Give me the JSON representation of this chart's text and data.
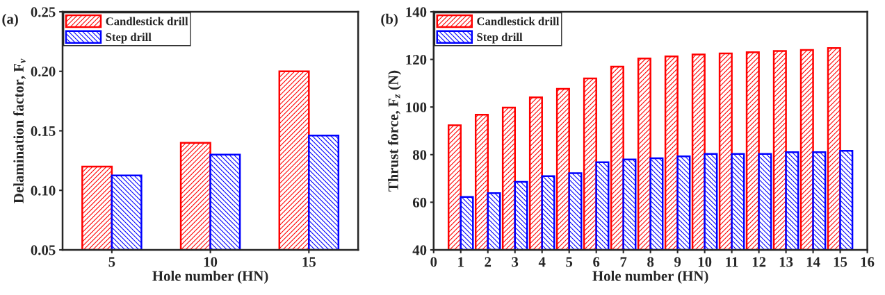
{
  "chart_data": [
    {
      "type": "bar",
      "annotations": [
        "(a)"
      ],
      "xlabel": "Hole number (HN)",
      "ylabel": "Delamination factor, F$_{v}$",
      "categories": [
        "5",
        "10",
        "15"
      ],
      "series": [
        {
          "name": "Candlestick drill",
          "color": "#ff0000",
          "values": [
            0.12,
            0.14,
            0.2
          ]
        },
        {
          "name": "Step drill",
          "color": "#0000ff",
          "values": [
            0.1125,
            0.13,
            0.146
          ]
        }
      ],
      "ylim": [
        0.05,
        0.25
      ],
      "yticks": [
        {
          "value": 0.05,
          "label": "0.05"
        },
        {
          "value": 0.1,
          "label": "0.10"
        },
        {
          "value": 0.15,
          "label": "0.15"
        },
        {
          "value": 0.2,
          "label": "0.20"
        },
        {
          "value": 0.25,
          "label": "0.25"
        }
      ],
      "legend": "top left",
      "grid": false
    },
    {
      "type": "bar",
      "annotations": [
        "(b)"
      ],
      "xlabel": "Hole number (HN)",
      "ylabel": "Thrust force, F$_{z}$ (N)",
      "x": [
        1,
        2,
        3,
        4,
        5,
        6,
        7,
        8,
        9,
        10,
        11,
        12,
        13,
        14,
        15
      ],
      "series": [
        {
          "name": "Candlestick drill",
          "color": "#ff0000",
          "values": [
            92.3,
            96.8,
            99.8,
            104.1,
            107.6,
            112,
            117,
            120.4,
            121.3,
            122.1,
            122.5,
            123,
            123.5,
            124,
            124.8
          ]
        },
        {
          "name": "Step drill",
          "color": "#0000ff",
          "values": [
            62.2,
            63.8,
            68.6,
            71,
            72.2,
            76.8,
            78,
            78.5,
            79.3,
            80.3,
            80.3,
            80.3,
            81,
            81,
            81.6
          ]
        }
      ],
      "xlim": [
        0,
        16
      ],
      "xticks": [
        0,
        1,
        2,
        3,
        4,
        5,
        6,
        7,
        8,
        9,
        10,
        11,
        12,
        13,
        14,
        15,
        16
      ],
      "ylim": [
        40,
        140
      ],
      "yticks": [
        40,
        60,
        80,
        100,
        120,
        140
      ],
      "legend": "top left",
      "grid": false
    }
  ]
}
